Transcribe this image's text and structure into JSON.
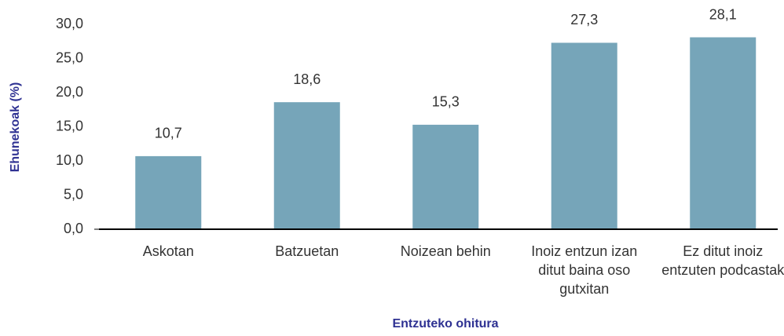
{
  "chart_data": {
    "type": "bar",
    "x_label": "Entzuteko ohitura",
    "y_label": "Ehunekoak (%)",
    "categories": [
      "Askotan",
      "Batzuetan",
      "Noizean behin",
      "Inoiz entzun izan ditut baina oso gutxitan",
      "Ez ditut inoiz entzuten podcastak"
    ],
    "values": [
      10.7,
      18.6,
      15.3,
      27.3,
      28.1
    ],
    "value_labels": [
      "10,7",
      "18,6",
      "15,3",
      "27,3",
      "28,1"
    ],
    "color": "#76a5b9",
    "ylim": [
      0,
      30
    ],
    "yticks": [
      {
        "value": 0,
        "label": "0,0"
      },
      {
        "value": 5,
        "label": "5,0"
      },
      {
        "value": 10,
        "label": "10,0"
      },
      {
        "value": 15,
        "label": "15,0"
      },
      {
        "value": 20,
        "label": "20,0"
      },
      {
        "value": 25,
        "label": "25,0"
      },
      {
        "value": 30,
        "label": "30,0"
      }
    ],
    "grid": false
  }
}
